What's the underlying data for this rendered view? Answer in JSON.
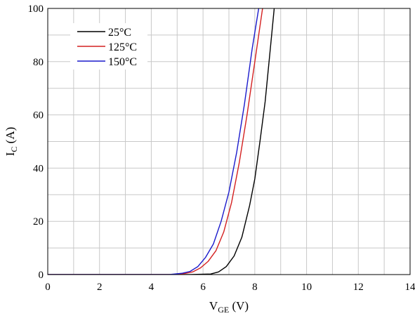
{
  "chart_data": {
    "type": "line",
    "xlabel": {
      "main": "V",
      "sub": "GE",
      "unit": " (V)"
    },
    "ylabel": {
      "main": "I",
      "sub": "C",
      "unit": " (A)"
    },
    "xlim": [
      0,
      14
    ],
    "ylim": [
      0,
      100
    ],
    "x_ticks": [
      0,
      2,
      4,
      6,
      8,
      10,
      12,
      14
    ],
    "y_ticks": [
      0,
      20,
      40,
      60,
      80,
      100
    ],
    "x_grid_step": 1,
    "y_grid_step": 10,
    "grid": true,
    "legend_position": "top-left",
    "series": [
      {
        "name": "25°C",
        "color": "#000000",
        "x": [
          0,
          5.5,
          6.3,
          6.6,
          6.9,
          7.2,
          7.5,
          7.8,
          8.0,
          8.2,
          8.4,
          8.6,
          8.75
        ],
        "y": [
          0,
          0,
          0.2,
          1.0,
          3.0,
          7.0,
          14.0,
          26.0,
          36.0,
          50.0,
          65.0,
          85.0,
          100
        ]
      },
      {
        "name": "125°C",
        "color": "#d42020",
        "x": [
          0,
          4.8,
          5.3,
          5.6,
          5.9,
          6.2,
          6.5,
          6.8,
          7.1,
          7.4,
          7.7,
          8.0,
          8.3
        ],
        "y": [
          0,
          0,
          0.4,
          1.0,
          2.5,
          5.0,
          9.0,
          16.0,
          27.0,
          42.0,
          60.0,
          80.0,
          100
        ]
      },
      {
        "name": "150°C",
        "color": "#1a1acc",
        "x": [
          0,
          4.7,
          5.2,
          5.5,
          5.8,
          6.1,
          6.4,
          6.7,
          7.0,
          7.3,
          7.6,
          7.9,
          8.15
        ],
        "y": [
          0,
          0,
          0.5,
          1.2,
          3.0,
          6.5,
          11.5,
          20.0,
          31.0,
          46.0,
          64.0,
          85.0,
          100
        ]
      }
    ]
  }
}
